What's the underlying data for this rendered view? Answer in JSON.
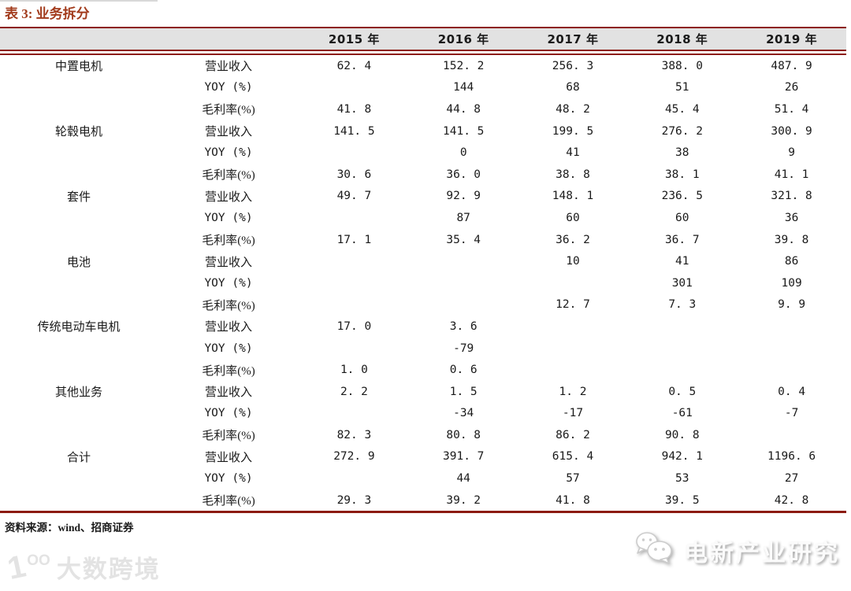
{
  "title": "表 3: 业务拆分",
  "table": {
    "columns": [
      "2015 年",
      "2016 年",
      "2017 年",
      "2018 年",
      "2019 年"
    ],
    "groups": [
      {
        "name": "中置电机",
        "rows": [
          {
            "metric": "营业收入",
            "values": [
              "62. 4",
              "152. 2",
              "256. 3",
              "388. 0",
              "487. 9"
            ]
          },
          {
            "metric": "YOY (%)",
            "values": [
              "",
              "144",
              "68",
              "51",
              "26"
            ]
          },
          {
            "metric": "毛利率(%)",
            "values": [
              "41. 8",
              "44. 8",
              "48. 2",
              "45. 4",
              "51. 4"
            ]
          }
        ]
      },
      {
        "name": "轮毂电机",
        "rows": [
          {
            "metric": "营业收入",
            "values": [
              "141. 5",
              "141. 5",
              "199. 5",
              "276. 2",
              "300. 9"
            ]
          },
          {
            "metric": "YOY (%)",
            "values": [
              "",
              "0",
              "41",
              "38",
              "9"
            ]
          },
          {
            "metric": "毛利率(%)",
            "values": [
              "30. 6",
              "36. 0",
              "38. 8",
              "38. 1",
              "41. 1"
            ]
          }
        ]
      },
      {
        "name": "套件",
        "rows": [
          {
            "metric": "营业收入",
            "values": [
              "49. 7",
              "92. 9",
              "148. 1",
              "236. 5",
              "321. 8"
            ]
          },
          {
            "metric": "YOY (%)",
            "values": [
              "",
              "87",
              "60",
              "60",
              "36"
            ]
          },
          {
            "metric": "毛利率(%)",
            "values": [
              "17. 1",
              "35. 4",
              "36. 2",
              "36. 7",
              "39. 8"
            ]
          }
        ]
      },
      {
        "name": "电池",
        "rows": [
          {
            "metric": "营业收入",
            "values": [
              "",
              "",
              "10",
              "41",
              "86"
            ]
          },
          {
            "metric": "YOY (%)",
            "values": [
              "",
              "",
              "",
              "301",
              "109"
            ]
          },
          {
            "metric": "毛利率(%)",
            "values": [
              "",
              "",
              "12. 7",
              "7. 3",
              "9. 9"
            ]
          }
        ]
      },
      {
        "name": "传统电动车电机",
        "rows": [
          {
            "metric": "营业收入",
            "values": [
              "17. 0",
              "3. 6",
              "",
              "",
              ""
            ]
          },
          {
            "metric": "YOY (%)",
            "values": [
              "",
              "-79",
              "",
              "",
              ""
            ]
          },
          {
            "metric": "毛利率(%)",
            "values": [
              "1. 0",
              "0. 6",
              "",
              "",
              ""
            ]
          }
        ]
      },
      {
        "name": "其他业务",
        "rows": [
          {
            "metric": "营业收入",
            "values": [
              "2. 2",
              "1. 5",
              "1. 2",
              "0. 5",
              "0. 4"
            ]
          },
          {
            "metric": "YOY (%)",
            "values": [
              "",
              "-34",
              "-17",
              "-61",
              "-7"
            ]
          },
          {
            "metric": "毛利率(%)",
            "values": [
              "82. 3",
              "80. 8",
              "86. 2",
              "90. 8",
              ""
            ]
          }
        ]
      },
      {
        "name": "合计",
        "rows": [
          {
            "metric": "营业收入",
            "values": [
              "272. 9",
              "391. 7",
              "615. 4",
              "942. 1",
              "1196. 6"
            ]
          },
          {
            "metric": "YOY (%)",
            "values": [
              "",
              "44",
              "57",
              "53",
              "27"
            ]
          },
          {
            "metric": "毛利率(%)",
            "values": [
              "29. 3",
              "39. 2",
              "41. 8",
              "39. 5",
              "42. 8"
            ]
          }
        ]
      }
    ]
  },
  "source": {
    "text": "资料来源：wind、招商证券"
  },
  "watermarks": {
    "left_text": "大数跨境",
    "left_logo": {
      "one": "1",
      "oo": "OO"
    },
    "right_text": "电新产业研究",
    "right_icon": "wechat-icon"
  },
  "colors": {
    "rule_line": "#8c1b11",
    "title_text": "#a23b1c",
    "header_background": "#e2e2e2",
    "body_text": "#1a1a1a",
    "watermark_gray": "#e3e3e3"
  }
}
